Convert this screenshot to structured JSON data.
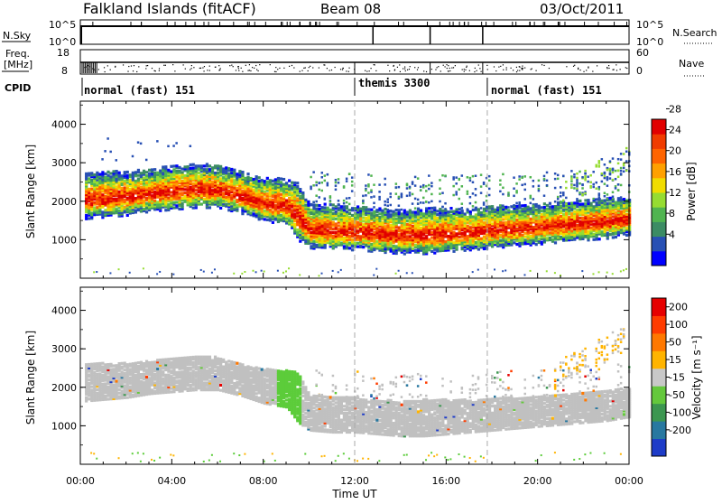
{
  "header": {
    "title": "Falkland Islands (fitACF)",
    "beam": "Beam 08",
    "date": "03/Oct/2011"
  },
  "nsky_panel": {
    "left_label": "N.Sky",
    "left_ticks": [
      "10^5",
      "10^0"
    ],
    "right_label": "N.Search",
    "right_ticks": [
      "10^5",
      "10^0"
    ]
  },
  "freq_panel": {
    "left_label_line1": "Freq.",
    "left_label_line2": "[MHz]",
    "left_ticks": [
      "18",
      "8"
    ],
    "right_label": "Nave",
    "right_ticks": [
      "60",
      "0"
    ]
  },
  "cpid_panel": {
    "label": "CPID",
    "segments": [
      {
        "label": "normal (fast) 151",
        "start_hour": 0
      },
      {
        "label": "themis 3300",
        "start_hour": 12
      },
      {
        "label": "normal (fast) 151",
        "start_hour": 17.8
      }
    ]
  },
  "power_colorbar": {
    "label": "Power [dB]",
    "ticks": [
      "4",
      "8",
      "12",
      "16",
      "20",
      "24",
      "28"
    ],
    "colors": [
      "#0000ff",
      "#2850b4",
      "#3c8c64",
      "#50b450",
      "#96dc32",
      "#f0dc00",
      "#ffa000",
      "#ff6400",
      "#f03c00",
      "#e10000"
    ]
  },
  "velocity_colorbar": {
    "label": "Velocity [m s⁻¹]",
    "ticks": [
      "200",
      "100",
      "50",
      "15",
      "-15",
      "-50",
      "-100",
      "-200"
    ],
    "colors": [
      "#1e3cc8",
      "#2878a0",
      "#3c9650",
      "#64c83c",
      "#c8c8c8",
      "#ffb400",
      "#ff7800",
      "#ff3c00",
      "#e60000"
    ]
  },
  "chart_data": [
    {
      "type": "heatmap",
      "name": "power",
      "ylabel": "Slant Range [km]",
      "ylim": [
        0,
        4600
      ],
      "xlim": [
        0,
        24
      ],
      "yticks": [
        "1000",
        "2000",
        "3000",
        "4000"
      ],
      "ytick_values": [
        1000,
        2000,
        3000,
        4000
      ],
      "echo_band": {
        "x": [
          0,
          1,
          2,
          3,
          4,
          5,
          6,
          7,
          7.5,
          8,
          9,
          9.5,
          10,
          11,
          12,
          13,
          14,
          15,
          16,
          17,
          18,
          19,
          20,
          21,
          22,
          23,
          24
        ],
        "lower": [
          1750,
          1800,
          1850,
          1950,
          2000,
          2050,
          2050,
          1900,
          1800,
          1700,
          1600,
          1200,
          1000,
          950,
          950,
          900,
          850,
          850,
          900,
          950,
          1000,
          1050,
          1100,
          1150,
          1200,
          1250,
          1350
        ],
        "upper": [
          2400,
          2450,
          2450,
          2500,
          2600,
          2650,
          2600,
          2450,
          2350,
          2300,
          2250,
          2200,
          1600,
          1600,
          1550,
          1500,
          1450,
          1500,
          1500,
          1500,
          1550,
          1550,
          1600,
          1650,
          1700,
          1750,
          1800
        ]
      }
    },
    {
      "type": "heatmap",
      "name": "velocity",
      "ylabel": "Slant Range [km]",
      "ylim": [
        0,
        4600
      ],
      "xlim": [
        0,
        24
      ],
      "yticks": [
        "1000",
        "2000",
        "3000",
        "4000"
      ],
      "ytick_values": [
        1000,
        2000,
        3000,
        4000
      ],
      "xticks": [
        "00:00",
        "04:00",
        "08:00",
        "12:00",
        "16:00",
        "20:00",
        "00:00"
      ],
      "xtick_values": [
        0,
        4,
        8,
        12,
        16,
        20,
        24
      ],
      "xlabel": "Time UT"
    }
  ],
  "colors": {
    "dashed_lines": "#aaaaaa",
    "grey_scatter": "#c0c0c0",
    "green_patch": "#5ccc3a",
    "orange_patch": "#ffb400"
  }
}
